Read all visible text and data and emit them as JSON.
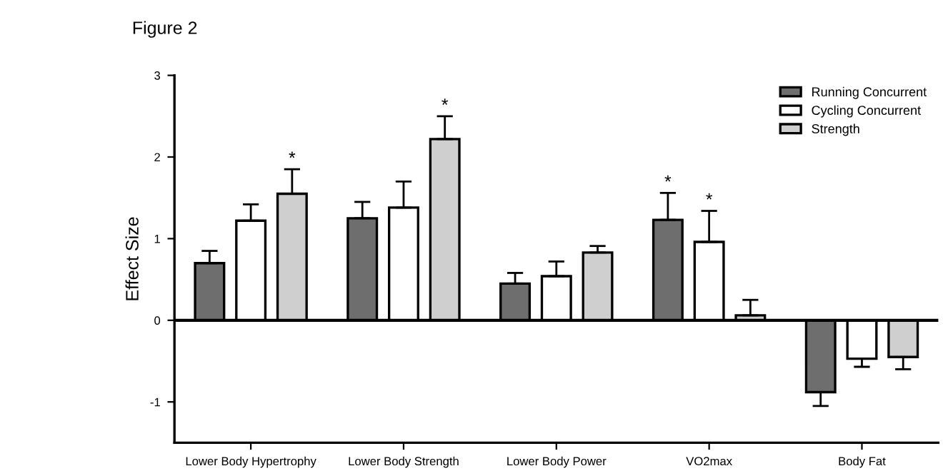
{
  "chart_data": {
    "type": "bar",
    "title": "Figure 2",
    "ylabel": "Effect Size",
    "categories": [
      "Lower Body Hypertrophy",
      "Lower Body Strength",
      "Lower Body Power",
      "VO2max",
      "Body Fat"
    ],
    "series": [
      {
        "name": "Running Concurrent",
        "color": "#6e6e6e",
        "values": [
          0.7,
          1.25,
          0.45,
          1.23,
          -0.88
        ],
        "value_labels": [
          null,
          null,
          null,
          "*",
          null
        ],
        "errors": [
          [
            0.7,
            0.85
          ],
          [
            1.25,
            1.45
          ],
          [
            0.45,
            0.58
          ],
          [
            1.23,
            1.56
          ],
          [
            -1.05,
            -0.88
          ]
        ]
      },
      {
        "name": "Cycling Concurrent",
        "color": "#ffffff",
        "values": [
          1.22,
          1.38,
          0.54,
          0.96,
          -0.47
        ],
        "value_labels": [
          null,
          null,
          null,
          "*",
          null
        ],
        "errors": [
          [
            1.22,
            1.42
          ],
          [
            1.38,
            1.7
          ],
          [
            0.54,
            0.72
          ],
          [
            0.96,
            1.34
          ],
          [
            -0.57,
            -0.47
          ]
        ]
      },
      {
        "name": "Strength",
        "color": "#cfcfcf",
        "values": [
          1.55,
          2.22,
          0.83,
          0.06,
          -0.45
        ],
        "value_labels": [
          "*",
          "*",
          null,
          null,
          null
        ],
        "errors": [
          [
            1.55,
            1.85
          ],
          [
            2.22,
            2.5
          ],
          [
            0.83,
            0.91
          ],
          [
            0.06,
            0.25
          ],
          [
            -0.6,
            -0.45
          ]
        ]
      }
    ],
    "ref_lines": [
      {
        "axis": "y",
        "value": 0,
        "color": "#000000"
      }
    ],
    "ylim": [
      -1.5,
      3
    ],
    "yticks": [
      {
        "value": -1,
        "label": "-1"
      },
      0,
      1,
      2,
      3
    ],
    "legend": "top right",
    "grid": false
  }
}
